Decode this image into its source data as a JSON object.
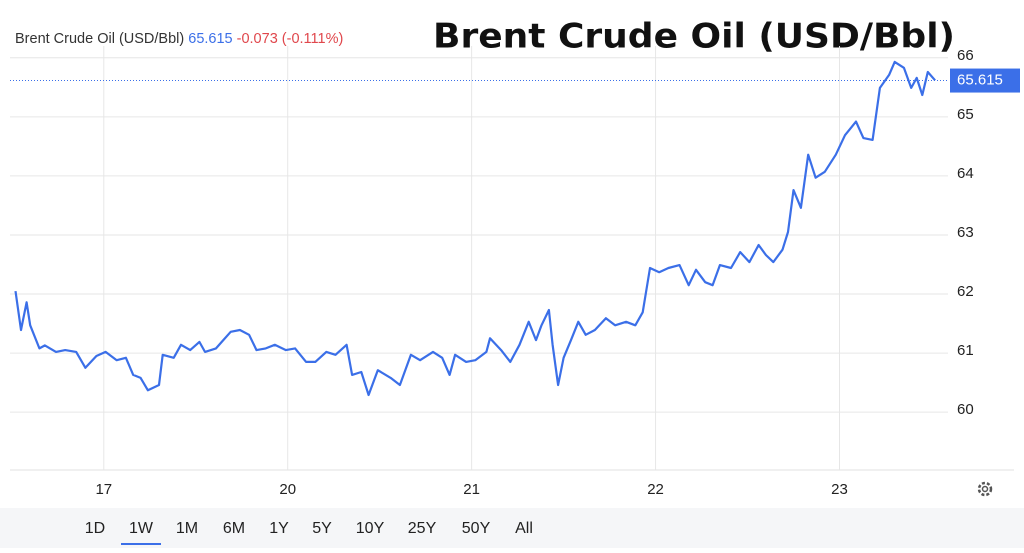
{
  "chart_data": {
    "type": "line",
    "title": "Brent Crude Oil (USD/Bbl)",
    "last_price": 65.615,
    "change_label": "-0.073 (-0.111%)",
    "series": [
      {
        "name": "Brent Crude Oil (USD/Bbl)",
        "color": "#3b6fe8",
        "x": [
          -0.48,
          -0.45,
          -0.42,
          -0.4,
          -0.35,
          -0.32,
          -0.26,
          -0.21,
          -0.15,
          -0.1,
          -0.04,
          0.01,
          0.07,
          0.12,
          0.16,
          0.2,
          0.24,
          0.3,
          0.32,
          0.38,
          0.42,
          0.47,
          0.52,
          0.55,
          0.61,
          0.65,
          0.69,
          0.74,
          0.79,
          0.83,
          0.88,
          0.93,
          0.99,
          1.04,
          1.1,
          1.15,
          1.21,
          1.26,
          1.32,
          1.35,
          1.4,
          1.44,
          1.49,
          1.56,
          1.61,
          1.67,
          1.72,
          1.79,
          1.84,
          1.88,
          1.91,
          1.97,
          2.02,
          2.08,
          2.1,
          2.16,
          2.21,
          2.26,
          2.31,
          2.35,
          2.38,
          2.42,
          2.44,
          2.47,
          2.5,
          2.54,
          2.58,
          2.62,
          2.67,
          2.73,
          2.78,
          2.84,
          2.89,
          2.93,
          2.97,
          3.02,
          3.07,
          3.13,
          3.18,
          3.22,
          3.27,
          3.31,
          3.35,
          3.41,
          3.46,
          3.51,
          3.56,
          3.6,
          3.64,
          3.69,
          3.72,
          3.75,
          3.79,
          3.83,
          3.87,
          3.92,
          3.98,
          4.03,
          4.09,
          4.13,
          4.18,
          4.22,
          4.27,
          4.3,
          4.35,
          4.39,
          4.42,
          4.45,
          4.48,
          4.52
        ],
        "values": [
          62.05,
          61.39,
          61.86,
          61.47,
          61.08,
          61.13,
          61.02,
          61.05,
          61.02,
          60.75,
          60.95,
          61.02,
          60.88,
          60.92,
          60.63,
          60.58,
          60.37,
          60.46,
          60.97,
          60.92,
          61.14,
          61.05,
          61.19,
          61.02,
          61.08,
          61.22,
          61.36,
          61.39,
          61.31,
          61.05,
          61.08,
          61.14,
          61.05,
          61.08,
          60.85,
          60.85,
          61.02,
          60.97,
          61.14,
          60.63,
          60.68,
          60.29,
          60.71,
          60.58,
          60.46,
          60.97,
          60.88,
          61.02,
          60.92,
          60.63,
          60.97,
          60.85,
          60.88,
          61.02,
          61.25,
          61.05,
          60.85,
          61.14,
          61.53,
          61.22,
          61.47,
          61.73,
          61.14,
          60.46,
          60.92,
          61.22,
          61.53,
          61.31,
          61.39,
          61.59,
          61.47,
          61.53,
          61.47,
          61.69,
          62.44,
          62.37,
          62.44,
          62.49,
          62.15,
          62.41,
          62.2,
          62.15,
          62.49,
          62.44,
          62.71,
          62.54,
          62.83,
          62.66,
          62.54,
          62.75,
          63.05,
          63.76,
          63.46,
          64.36,
          63.97,
          64.07,
          64.36,
          64.69,
          64.92,
          64.64,
          64.61,
          65.49,
          65.71,
          65.93,
          65.83,
          65.49,
          65.66,
          65.37,
          65.76,
          65.62
        ]
      }
    ],
    "xlim": [
      -0.51,
      4.59
    ],
    "xticks": [
      {
        "value": 0,
        "label": "17"
      },
      {
        "value": 1,
        "label": "20"
      },
      {
        "value": 2,
        "label": "21"
      },
      {
        "value": 3,
        "label": "22"
      },
      {
        "value": 4,
        "label": "23"
      }
    ],
    "ylim": [
      59.02,
      66.2
    ],
    "yticks": [
      60,
      61,
      62,
      63,
      64,
      65,
      66
    ],
    "grid": true,
    "range_buttons": [
      "1D",
      "1W",
      "1M",
      "6M",
      "1Y",
      "5Y",
      "10Y",
      "25Y",
      "50Y",
      "All"
    ],
    "selected_range": "1W"
  }
}
